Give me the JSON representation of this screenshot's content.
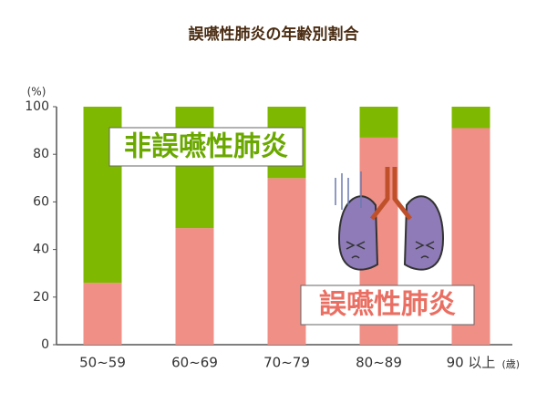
{
  "chart_data": {
    "type": "bar",
    "stacked": true,
    "title": "誤嚥性肺炎の年齢別割合",
    "y_unit": "(%)",
    "x_unit": "(歳)",
    "categories": [
      "50~59",
      "60~69",
      "70~79",
      "80~89",
      "90 以上"
    ],
    "series": [
      {
        "name": "誤嚥性肺炎",
        "color": "#ef8f86",
        "values": [
          26,
          49,
          70,
          87,
          91
        ]
      },
      {
        "name": "非誤嚥性肺炎",
        "color": "#7fb800",
        "values": [
          74,
          51,
          30,
          13,
          9
        ]
      }
    ],
    "ylim": [
      0,
      100
    ],
    "yticks": [
      0,
      20,
      40,
      60,
      80,
      100
    ],
    "grid": false
  }
}
